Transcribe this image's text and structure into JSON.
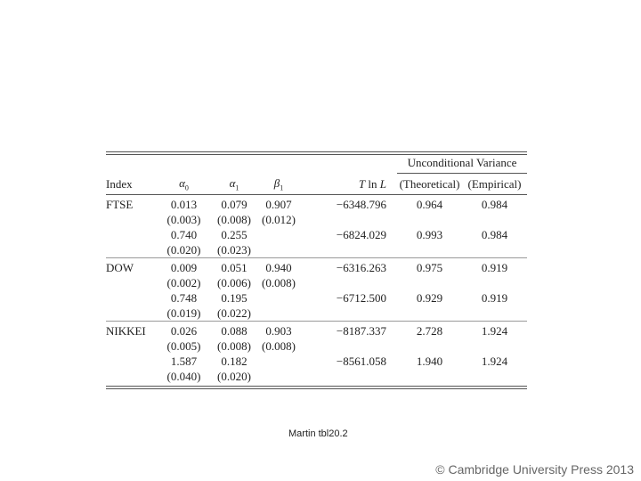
{
  "table": {
    "super_header": "Unconditional Variance",
    "headers": {
      "index": "Index",
      "alpha0": "α",
      "alpha0_sub": "0",
      "alpha1": "α",
      "alpha1_sub": "1",
      "beta1": "β",
      "beta1_sub": "1",
      "tlnl_t": "T",
      "tlnl_ln": " ln ",
      "tlnl_l": "L",
      "theoretical": "(Theoretical)",
      "empirical": "(Empirical)"
    },
    "rows": [
      {
        "index": "FTSE",
        "a0": "0.013",
        "a1": "0.079",
        "b1": "0.907",
        "tlnl": "−6348.796",
        "theo": "0.964",
        "emp": "0.984"
      },
      {
        "index": "",
        "a0": "(0.003)",
        "a1": "(0.008)",
        "b1": "(0.012)",
        "tlnl": "",
        "theo": "",
        "emp": ""
      },
      {
        "index": "",
        "a0": "0.740",
        "a1": "0.255",
        "b1": "",
        "tlnl": "−6824.029",
        "theo": "0.993",
        "emp": "0.984"
      },
      {
        "index": "",
        "a0": "(0.020)",
        "a1": "(0.023)",
        "b1": "",
        "tlnl": "",
        "theo": "",
        "emp": ""
      },
      {
        "index": "DOW",
        "a0": "0.009",
        "a1": "0.051",
        "b1": "0.940",
        "tlnl": "−6316.263",
        "theo": "0.975",
        "emp": "0.919"
      },
      {
        "index": "",
        "a0": "(0.002)",
        "a1": "(0.006)",
        "b1": "(0.008)",
        "tlnl": "",
        "theo": "",
        "emp": ""
      },
      {
        "index": "",
        "a0": "0.748",
        "a1": "0.195",
        "b1": "",
        "tlnl": "−6712.500",
        "theo": "0.929",
        "emp": "0.919"
      },
      {
        "index": "",
        "a0": "(0.019)",
        "a1": "(0.022)",
        "b1": "",
        "tlnl": "",
        "theo": "",
        "emp": ""
      },
      {
        "index": "NIKKEI",
        "a0": "0.026",
        "a1": "0.088",
        "b1": "0.903",
        "tlnl": "−8187.337",
        "theo": "2.728",
        "emp": "1.924"
      },
      {
        "index": "",
        "a0": "(0.005)",
        "a1": "(0.008)",
        "b1": "(0.008)",
        "tlnl": "",
        "theo": "",
        "emp": ""
      },
      {
        "index": "",
        "a0": "1.587",
        "a1": "0.182",
        "b1": "",
        "tlnl": "−8561.058",
        "theo": "1.940",
        "emp": "1.924"
      },
      {
        "index": "",
        "a0": "(0.040)",
        "a1": "(0.020)",
        "b1": "",
        "tlnl": "",
        "theo": "",
        "emp": ""
      }
    ]
  },
  "caption": "Martin tbl20.2",
  "copyright": "© Cambridge University Press 2013"
}
